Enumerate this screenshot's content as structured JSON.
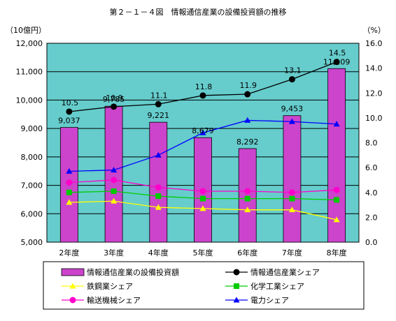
{
  "chart_data": {
    "type": "bar",
    "title": "第２－１－４図　情報通信産業の設備投資額の推移",
    "left_unit": "（10億円）",
    "right_unit": "（%）",
    "categories": [
      "2年度",
      "3年度",
      "4年度",
      "5年度",
      "6年度",
      "7年度",
      "8年度"
    ],
    "left_axis": {
      "min": 5000,
      "max": 12000,
      "step": 1000,
      "tick_labels": [
        "5,000",
        "6,000",
        "7,000",
        "8,000",
        "9,000",
        "10,000",
        "11,000",
        "12,000"
      ]
    },
    "right_axis": {
      "min": 0,
      "max": 16,
      "step": 2,
      "tick_labels": [
        "0.0",
        "2.0",
        "4.0",
        "6.0",
        "8.0",
        "10.0",
        "12.0",
        "14.0",
        "16.0"
      ]
    },
    "bar_series": {
      "name": "情報通信産業の設備投資額",
      "values": [
        9037,
        9785,
        9221,
        8679,
        8292,
        9453,
        11109
      ],
      "labels": [
        "9,037",
        "9,785",
        "9,221",
        "8,679",
        "8,292",
        "9,453",
        "11,109"
      ],
      "color": "#cc44cc"
    },
    "line_series": [
      {
        "name": "情報通信産業シェア",
        "values": [
          10.5,
          10.9,
          11.1,
          11.8,
          11.9,
          13.1,
          14.5
        ],
        "labels": [
          "10.5",
          "10.9",
          "11.1",
          "11.8",
          "11.9",
          "13.1",
          "14.5"
        ],
        "color": "#000000",
        "marker": "circle"
      },
      {
        "name": "鉄鋼業シェア",
        "values": [
          3.2,
          3.3,
          2.8,
          2.7,
          2.6,
          2.6,
          1.8
        ],
        "color": "#ffff00",
        "marker": "triangle"
      },
      {
        "name": "化学工業シェア",
        "values": [
          4.0,
          4.1,
          3.7,
          3.5,
          3.5,
          3.5,
          3.4
        ],
        "color": "#00cc00",
        "marker": "square"
      },
      {
        "name": "輸送機械シェア",
        "values": [
          4.8,
          5.0,
          4.4,
          4.1,
          4.1,
          4.0,
          4.2
        ],
        "color": "#ff00cc",
        "marker": "circle"
      },
      {
        "name": "電力シェア",
        "values": [
          5.7,
          5.8,
          7.0,
          8.8,
          9.8,
          9.7,
          9.5
        ],
        "color": "#0000ff",
        "marker": "triangle"
      }
    ],
    "plot_background": "#66cccc",
    "grid": true,
    "legend_position": "bottom"
  }
}
